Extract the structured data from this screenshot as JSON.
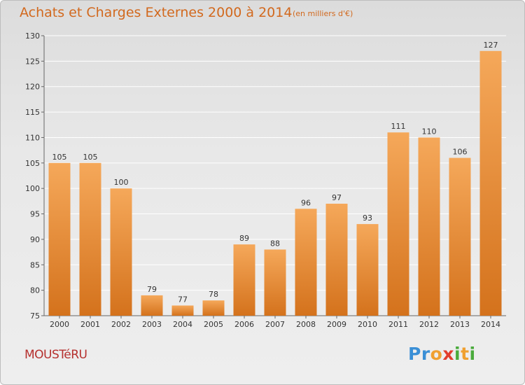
{
  "header": {
    "title": "Achats et Charges Externes 2000 à 2014",
    "subtitle": "(en milliers d'€)"
  },
  "footer": {
    "commune": "MOUSTéRU",
    "logo_letters": [
      {
        "char": "P",
        "color": "#3a8fd6"
      },
      {
        "char": "r",
        "color": "#3a8fd6"
      },
      {
        "char": "o",
        "color": "#f0a030"
      },
      {
        "char": "x",
        "color": "#e23d2d"
      },
      {
        "char": "i",
        "color": "#4aab3c"
      },
      {
        "char": "t",
        "color": "#f0a030"
      },
      {
        "char": "i",
        "color": "#4aab3c"
      }
    ]
  },
  "colors": {
    "bar_light": "#f5a85a",
    "bar_dark": "#d4721c",
    "title": "#d2691e"
  },
  "chart_data": {
    "type": "bar",
    "title": "Achats et Charges Externes 2000 à 2014",
    "subtitle": "(en milliers d'€)",
    "xlabel": "",
    "ylabel": "",
    "categories": [
      "2000",
      "2001",
      "2002",
      "2003",
      "2004",
      "2005",
      "2006",
      "2007",
      "2008",
      "2009",
      "2010",
      "2011",
      "2012",
      "2013",
      "2014"
    ],
    "values": [
      105,
      105,
      100,
      79,
      77,
      78,
      89,
      88,
      96,
      97,
      93,
      111,
      110,
      106,
      127
    ],
    "ylim": [
      75,
      130
    ],
    "yticks": [
      75,
      80,
      85,
      90,
      95,
      100,
      105,
      110,
      115,
      120,
      125,
      130
    ],
    "grid": true,
    "legend": "none"
  }
}
